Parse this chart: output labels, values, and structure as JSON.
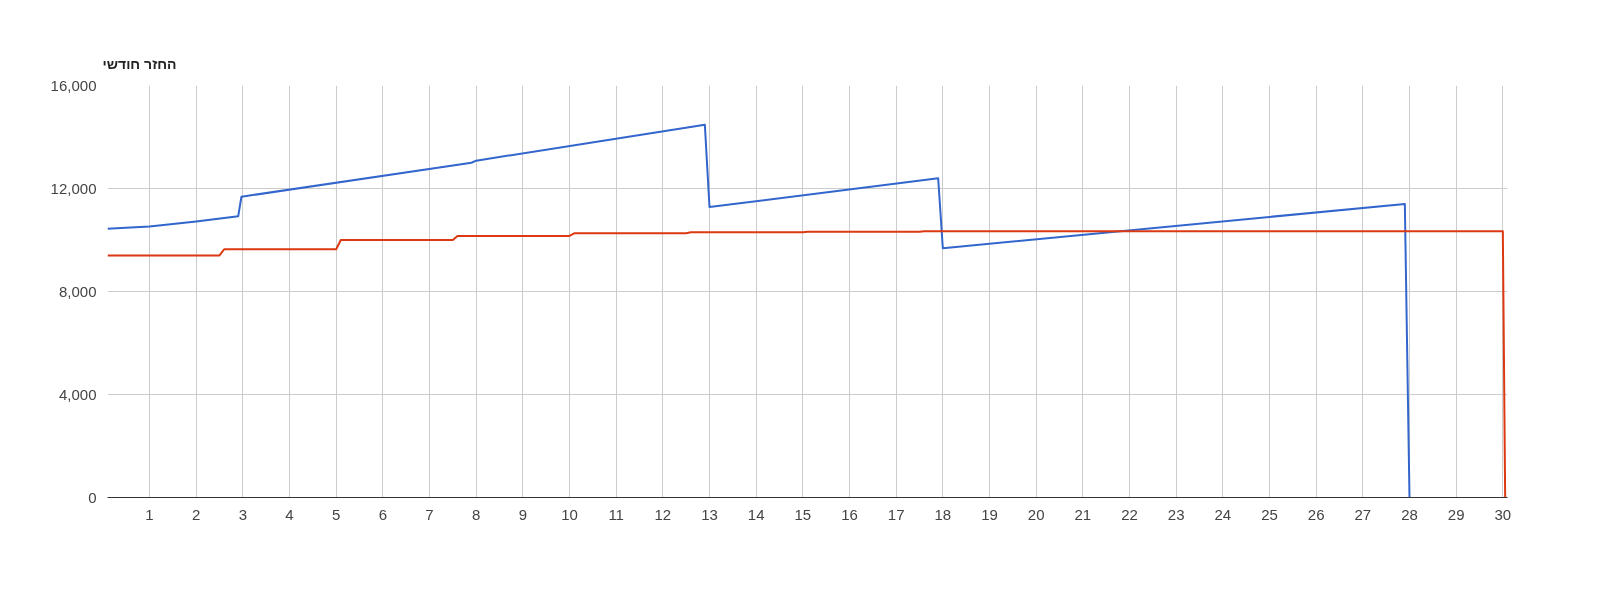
{
  "chart_data": {
    "type": "line",
    "title": "החזר חודשי",
    "xlim": [
      0.1,
      30.1
    ],
    "xticks": [
      1,
      2,
      3,
      4,
      5,
      6,
      7,
      8,
      9,
      10,
      11,
      12,
      13,
      14,
      15,
      16,
      17,
      18,
      19,
      20,
      21,
      22,
      23,
      24,
      25,
      26,
      27,
      28,
      29,
      30
    ],
    "ylim": [
      0,
      16000
    ],
    "yticks": [
      0,
      {
        "value": 4000,
        "label": "4,000"
      },
      {
        "value": 8000,
        "label": "8,000"
      },
      {
        "value": 12000,
        "label": "12,000"
      },
      {
        "value": 16000,
        "label": "16,000"
      }
    ],
    "grid": true,
    "marker": "none",
    "line_style": "solid",
    "series": [
      {
        "color": "#3366cc",
        "x": [
          0.1,
          1,
          2,
          2.9,
          2.97,
          7.9,
          8.0,
          12.9,
          13.0,
          17.9,
          18.0,
          27.9,
          28.0
        ],
        "values": [
          10440,
          10520,
          10720,
          10920,
          11680,
          13000,
          13080,
          14480,
          11280,
          12400,
          9680,
          11400,
          0
        ]
      },
      {
        "color": "#dc3912",
        "x": [
          0.1,
          2.5,
          2.6,
          5.0,
          5.1,
          7.5,
          7.6,
          10.0,
          10.1,
          12.5,
          12.6,
          15.0,
          15.1,
          17.5,
          17.6,
          30.0,
          30.05
        ],
        "values": [
          9400,
          9400,
          9640,
          9640,
          10000,
          10000,
          10160,
          10160,
          10260,
          10260,
          10300,
          10300,
          10320,
          10320,
          10340,
          10340,
          0
        ]
      }
    ]
  }
}
